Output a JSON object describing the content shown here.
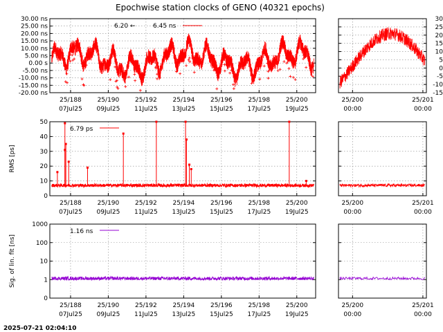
{
  "title": "Epochwise station clocks of GENO (40321 epochs)",
  "timestamp": "2025-07-21 02:04:10",
  "colors": {
    "clock": "#ff0000",
    "rms": "#ff0000",
    "sig": "#9400d3"
  },
  "chart_data": [
    {
      "type": "line",
      "panel": "station-clock",
      "ylabel": "",
      "ylim": [
        -20,
        30
      ],
      "y_tick_labels": [
        "30.00 ns",
        "25.00 ns",
        "20.00 ns",
        "15.00 ns",
        "10.00 ns",
        "5.00 ns",
        "0.00  s",
        "-5.00 ns",
        "-10.00 ns",
        "-15.00 ns",
        "-20.00 ns"
      ],
      "y_ticks": [
        30,
        25,
        20,
        15,
        10,
        5,
        0,
        -5,
        -10,
        -15,
        -20
      ],
      "x_tick_day_labels": [
        "25/188",
        "25/190",
        "25/192",
        "25/194",
        "25/196",
        "25/198",
        "25/200"
      ],
      "x_tick_date_labels": [
        "07Jul25",
        "09Jul25",
        "11Jul25",
        "13Jul25",
        "15Jul25",
        "17Jul25",
        "19Jul25"
      ],
      "x_ticks": [
        188,
        190,
        192,
        194,
        196,
        198,
        200
      ],
      "xlim": [
        186.9,
        201.0
      ],
      "series": [
        {
          "name": "6.20",
          "legend_marker": "←"
        },
        {
          "name": "6.45 ns",
          "legend_marker": "line"
        }
      ],
      "zoom": {
        "ylim": [
          -15,
          30
        ],
        "y_ticks": [
          30,
          25,
          20,
          15,
          10,
          5,
          0,
          -5,
          -10,
          -15
        ],
        "y_tick_labels": [
          "30",
          "25",
          "20",
          "15",
          "10",
          "5",
          "0",
          "-5",
          "-10",
          "-15"
        ],
        "x_tick_day_labels": [
          "25/200",
          "25/201"
        ],
        "x_tick_time_labels": [
          "00:00",
          "00:00"
        ],
        "x_ticks": [
          200,
          201
        ],
        "xlim": [
          199.8,
          201.05
        ]
      }
    },
    {
      "type": "line",
      "panel": "rms",
      "ylabel": "RMS [ps]",
      "ylim": [
        0,
        50
      ],
      "y_ticks": [
        0,
        10,
        20,
        30,
        40,
        50
      ],
      "y_tick_labels": [
        "0",
        "10",
        "20",
        "30",
        "40",
        "50"
      ],
      "x_tick_day_labels": [
        "25/188",
        "25/190",
        "25/192",
        "25/194",
        "25/196",
        "25/198",
        "25/200"
      ],
      "x_tick_date_labels": [
        "07Jul25",
        "09Jul25",
        "11Jul25",
        "13Jul25",
        "15Jul25",
        "17Jul25",
        "19Jul25"
      ],
      "x_ticks": [
        188,
        190,
        192,
        194,
        196,
        198,
        200
      ],
      "xlim": [
        186.9,
        201.0
      ],
      "baseline_value": 7,
      "spikes": [
        {
          "x": 187.7,
          "y": 49
        },
        {
          "x": 187.75,
          "y": 35
        },
        {
          "x": 187.7,
          "y": 31
        },
        {
          "x": 187.3,
          "y": 16
        },
        {
          "x": 187.9,
          "y": 23
        },
        {
          "x": 188.9,
          "y": 19
        },
        {
          "x": 190.8,
          "y": 42
        },
        {
          "x": 192.55,
          "y": 50
        },
        {
          "x": 194.1,
          "y": 50
        },
        {
          "x": 194.15,
          "y": 38
        },
        {
          "x": 194.3,
          "y": 21
        },
        {
          "x": 194.4,
          "y": 18
        },
        {
          "x": 199.6,
          "y": 50
        },
        {
          "x": 200.5,
          "y": 10
        }
      ],
      "series": [
        {
          "name": "6.79 ps"
        }
      ],
      "zoom": {
        "ylim": [
          0,
          50
        ],
        "x_tick_day_labels": [
          "25/200",
          "25/201"
        ],
        "x_tick_time_labels": [
          "00:00",
          "00:00"
        ],
        "x_ticks": [
          200,
          201
        ],
        "xlim": [
          199.8,
          201.05
        ]
      }
    },
    {
      "type": "scatter",
      "panel": "sig-lin-fit",
      "ylabel": "Sig. of lin. fit [ns]",
      "scale": "log",
      "ylim": [
        0.1,
        1000
      ],
      "y_ticks": [
        0.1,
        1,
        10,
        100,
        1000
      ],
      "y_tick_labels": [
        "0",
        "1",
        "10",
        "100",
        "1000"
      ],
      "x_tick_day_labels": [
        "25/188",
        "25/190",
        "25/192",
        "25/194",
        "25/196",
        "25/198",
        "25/200"
      ],
      "x_tick_date_labels": [
        "07Jul25",
        "09Jul25",
        "11Jul25",
        "13Jul25",
        "15Jul25",
        "17Jul25",
        "19Jul25"
      ],
      "x_ticks": [
        188,
        190,
        192,
        194,
        196,
        198,
        200
      ],
      "xlim": [
        186.9,
        201.0
      ],
      "level": 1.16,
      "series": [
        {
          "name": "1.16 ns"
        }
      ],
      "zoom": {
        "ylim": [
          0.1,
          1000
        ],
        "x_tick_day_labels": [
          "25/200",
          "25/201"
        ],
        "x_tick_time_labels": [
          "00:00",
          "00:00"
        ],
        "x_ticks": [
          200,
          201
        ],
        "xlim": [
          199.8,
          201.05
        ]
      }
    }
  ]
}
